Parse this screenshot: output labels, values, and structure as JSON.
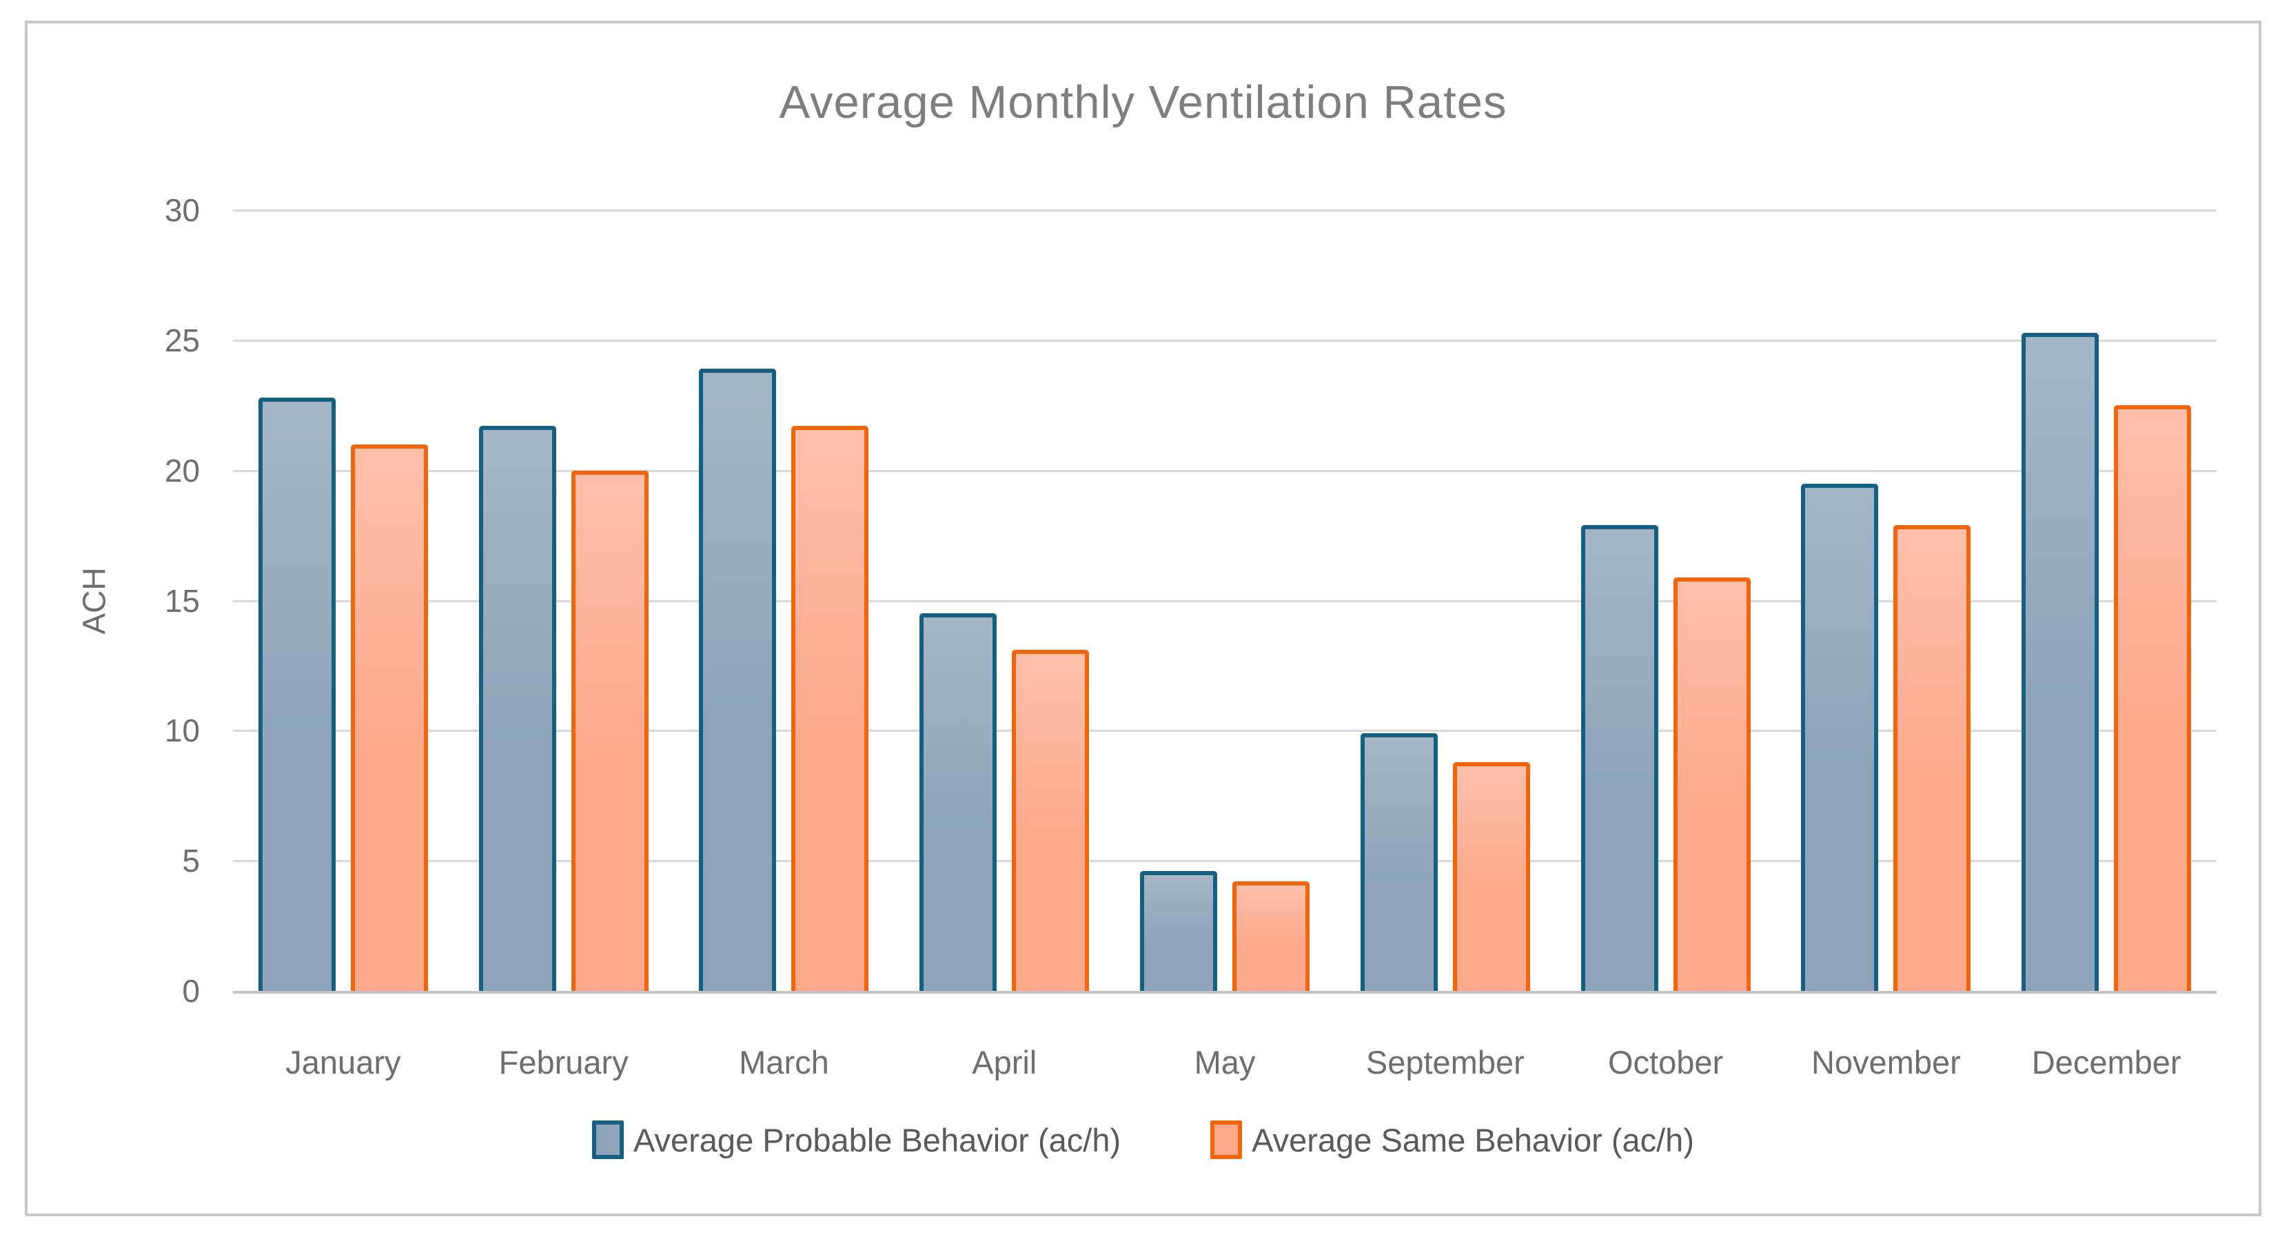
{
  "chart_data": {
    "type": "bar",
    "title": "Average Monthly Ventilation Rates",
    "xlabel": "",
    "ylabel": "ACH",
    "ylim": [
      0,
      30
    ],
    "yticks": [
      0,
      5,
      10,
      15,
      20,
      25,
      30
    ],
    "grid": true,
    "legend_position": "bottom",
    "categories": [
      "January",
      "February",
      "March",
      "April",
      "May",
      "September",
      "October",
      "November",
      "December"
    ],
    "series": [
      {
        "name": "Average Probable Behavior (ac/h)",
        "border_color": "#156082",
        "fill": "#8EA5B9",
        "fill_light": "#A4B6C6",
        "values": [
          22.8,
          21.7,
          23.9,
          14.5,
          4.6,
          9.9,
          17.9,
          19.5,
          25.3
        ]
      },
      {
        "name": "Average Same Behavior (ac/h)",
        "border_color": "#F1660D",
        "fill": "#FCA98C",
        "fill_light": "#FEBFAB",
        "values": [
          21.0,
          20.0,
          21.7,
          13.1,
          4.2,
          8.8,
          15.9,
          17.9,
          22.5
        ]
      }
    ]
  }
}
